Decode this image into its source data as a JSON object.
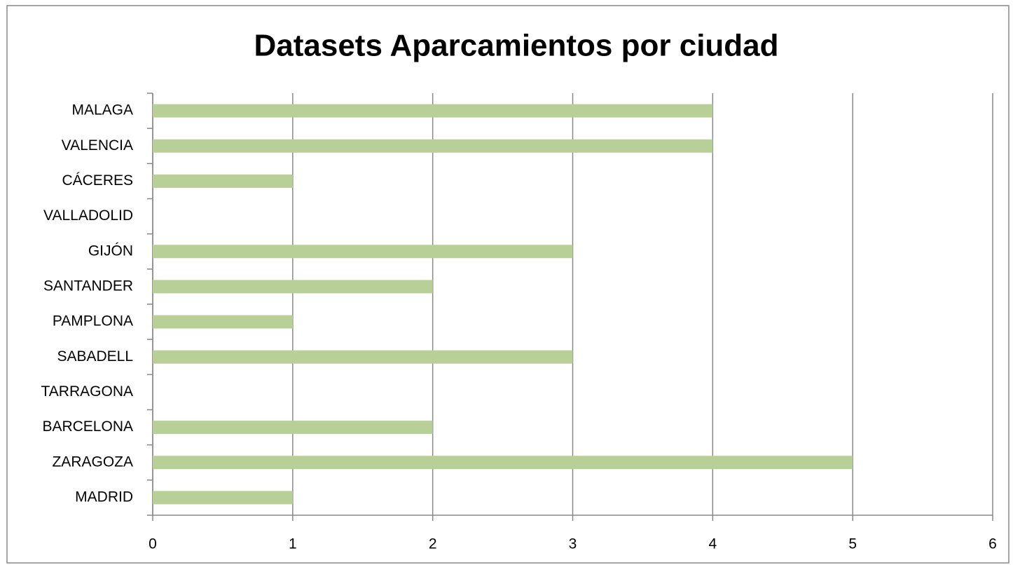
{
  "chart_data": {
    "type": "hbar",
    "title": "Datasets Aparcamientos por ciudad",
    "categories": [
      "MALAGA",
      "VALENCIA",
      "CÁCERES",
      "VALLADOLID",
      "GIJÓN",
      "SANTANDER",
      "PAMPLONA",
      "SABADELL",
      "TARRAGONA",
      "BARCELONA",
      "ZARAGOZA",
      "MADRID"
    ],
    "values": [
      4,
      4,
      1,
      0,
      3,
      2,
      1,
      3,
      0,
      2,
      5,
      1
    ],
    "color": "#b9cf98",
    "xlim": [
      0,
      6
    ],
    "xticks": [
      0,
      1,
      2,
      3,
      4,
      5,
      6
    ],
    "grid": true
  }
}
